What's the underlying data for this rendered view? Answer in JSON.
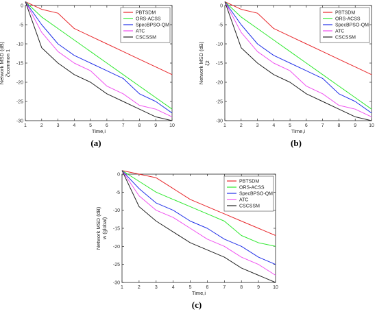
{
  "colors": {
    "PBTSDM": "#e8262a",
    "ORS-ACSS": "#2de82d",
    "SpecBPSO-QM": "#2030e8",
    "ATC": "#f050f0",
    "CSCSSM": "#222222"
  },
  "chart_data": [
    {
      "type": "line",
      "caption": "(a)",
      "xlabel": "Time,i",
      "ylabel": "Network MSD (dB)",
      "ylabel2": "ζ\\common 1",
      "xlim": [
        1,
        10
      ],
      "ylim": [
        -30,
        0
      ],
      "xticks": [
        "1",
        "2",
        "3",
        "4",
        "5",
        "6",
        "7",
        "8",
        "9",
        "10"
      ],
      "yticks": [
        "0",
        "-5",
        "-10",
        "-15",
        "-20",
        "-25",
        "-30"
      ],
      "legend": "top-right",
      "x": [
        1,
        2,
        3,
        4,
        5,
        6,
        7,
        8,
        9,
        10
      ],
      "series": [
        {
          "name": "PBTSDM",
          "values": [
            1,
            -1,
            -2,
            -6,
            -8,
            -10,
            -12,
            -14,
            -16,
            -18
          ]
        },
        {
          "name": "ORS-ACSS",
          "values": [
            1,
            -3,
            -6,
            -9,
            -12,
            -15,
            -18,
            -21,
            -24,
            -27
          ]
        },
        {
          "name": "SpecBPSO-QM",
          "values": [
            1,
            -5,
            -10,
            -13,
            -15,
            -17,
            -19,
            -23,
            -25,
            -28
          ]
        },
        {
          "name": "ATC",
          "values": [
            1,
            -7,
            -12,
            -15,
            -17,
            -21,
            -23,
            -26,
            -27,
            -29
          ]
        },
        {
          "name": "CSCSSM",
          "values": [
            1,
            -11,
            -15,
            -18,
            -20,
            -23,
            -25,
            -27,
            -29,
            -30
          ]
        }
      ]
    },
    {
      "type": "line",
      "caption": "(b)",
      "xlabel": "Time,i",
      "ylabel": "Network MSD (dB)",
      "ylabel2": "ζ2",
      "xlim": [
        1,
        10
      ],
      "ylim": [
        -30,
        0
      ],
      "xticks": [
        "1",
        "2",
        "3",
        "4",
        "5",
        "6",
        "7",
        "8",
        "9",
        "10"
      ],
      "yticks": [
        "0",
        "-5",
        "-10",
        "-15",
        "-20",
        "-25",
        "-30"
      ],
      "legend": "top-right",
      "x": [
        1,
        2,
        3,
        4,
        5,
        6,
        7,
        8,
        9,
        10
      ],
      "series": [
        {
          "name": "PBTSDM",
          "values": [
            1,
            -1,
            -2,
            -6,
            -8,
            -10,
            -12,
            -14,
            -16,
            -18
          ]
        },
        {
          "name": "ORS-ACSS",
          "values": [
            1,
            -3,
            -6,
            -9,
            -12,
            -15,
            -18,
            -21,
            -24,
            -27
          ]
        },
        {
          "name": "SpecBPSO-QM",
          "values": [
            1,
            -5,
            -10,
            -13,
            -15,
            -17,
            -19,
            -23,
            -25,
            -28
          ]
        },
        {
          "name": "ATC",
          "values": [
            1,
            -7,
            -12,
            -15,
            -17,
            -21,
            -23,
            -26,
            -27,
            -29
          ]
        },
        {
          "name": "CSCSSM",
          "values": [
            1,
            -11,
            -15,
            -18,
            -20,
            -23,
            -25,
            -27,
            -29,
            -30
          ]
        }
      ]
    },
    {
      "type": "line",
      "caption": "(c)",
      "xlabel": "Time,i",
      "ylabel": "Network MSD (dB)",
      "ylabel2": "w (global)",
      "xlim": [
        1,
        10
      ],
      "ylim": [
        -30,
        0
      ],
      "xticks": [
        "1",
        "2",
        "3",
        "4",
        "5",
        "6",
        "7",
        "8",
        "9",
        "10"
      ],
      "yticks": [
        "0",
        "-5",
        "-10",
        "-15",
        "-20",
        "-25",
        "-30"
      ],
      "legend": "top-right",
      "x": [
        1,
        2,
        3,
        4,
        5,
        6,
        7,
        8,
        9,
        10
      ],
      "series": [
        {
          "name": "PBTSDM",
          "values": [
            1,
            0,
            -1,
            -4,
            -7,
            -9,
            -11,
            -13,
            -15,
            -17
          ]
        },
        {
          "name": "ORS-ACSS",
          "values": [
            1,
            -2,
            -5,
            -7,
            -9,
            -11,
            -13,
            -17,
            -19,
            -20
          ]
        },
        {
          "name": "SpecBPSO-QM",
          "values": [
            1,
            -4,
            -8,
            -10,
            -13,
            -15,
            -18,
            -20,
            -23,
            -25
          ]
        },
        {
          "name": "ATC",
          "values": [
            1,
            -6,
            -10,
            -12,
            -15,
            -18,
            -20,
            -23,
            -25,
            -28
          ]
        },
        {
          "name": "CSCSSM",
          "values": [
            1,
            -9,
            -13,
            -16,
            -19,
            -21,
            -23,
            -26,
            -28,
            -30
          ]
        }
      ]
    }
  ]
}
